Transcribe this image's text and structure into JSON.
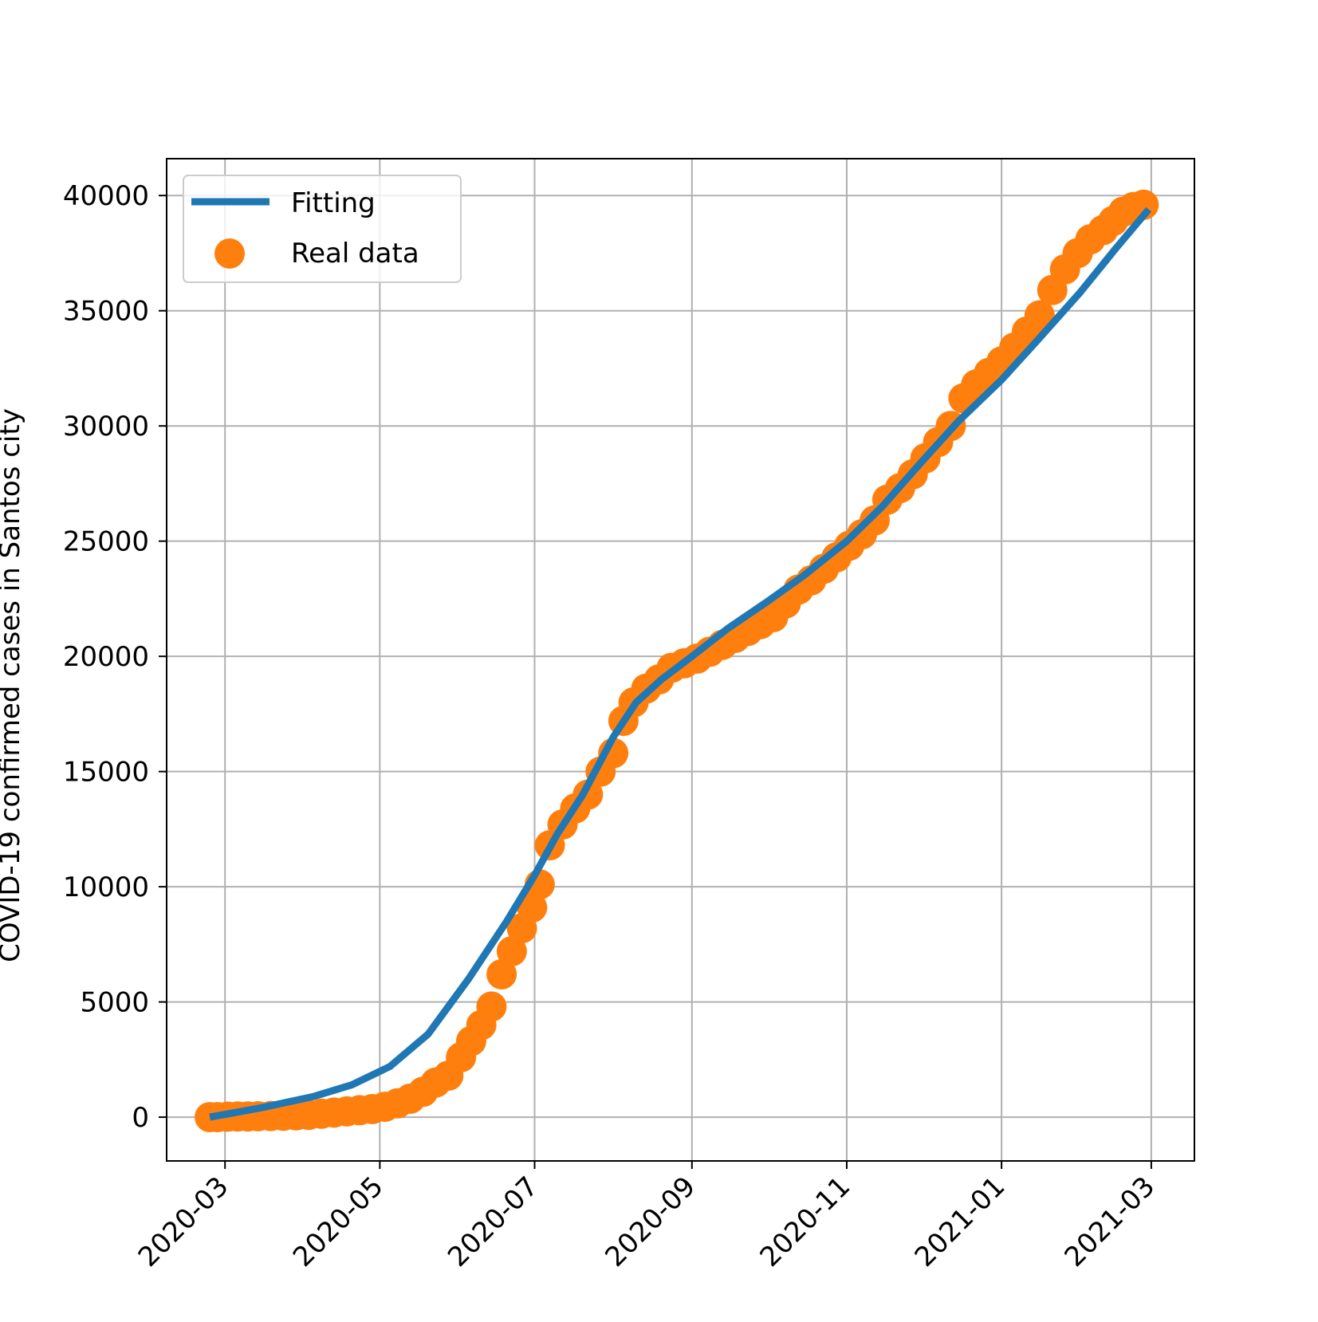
{
  "chart_data": {
    "type": "line",
    "ylabel": "COVID-19 confirmed cases in Santos city",
    "xlabel": "",
    "x_type": "date",
    "xlim": [
      "2020-02-07",
      "2021-03-18"
    ],
    "ylim": [
      -1900,
      41600
    ],
    "xticks": [
      "2020-03-01",
      "2020-05-01",
      "2020-07-01",
      "2020-09-01",
      "2020-11-01",
      "2021-01-01",
      "2021-03-01"
    ],
    "xtick_labels": [
      "2020-03",
      "2020-05",
      "2020-07",
      "2020-09",
      "2020-11",
      "2021-01",
      "2021-03"
    ],
    "yticks": [
      0,
      5000,
      10000,
      15000,
      20000,
      25000,
      30000,
      35000,
      40000
    ],
    "ytick_labels": [
      "0",
      "5000",
      "10000",
      "15000",
      "20000",
      "25000",
      "30000",
      "35000",
      "40000"
    ],
    "grid": true,
    "legend": {
      "placement": "top-left",
      "entries": [
        "Fitting",
        "Real data"
      ]
    },
    "colors": {
      "fitting": "#1f77b4",
      "real_data": "#ff7f0e",
      "grid": "#b0b0b0",
      "axes": "#000000"
    },
    "series": [
      {
        "name": "Fitting",
        "kind": "line",
        "x": [
          "2020-02-24",
          "2020-03-15",
          "2020-04-05",
          "2020-04-20",
          "2020-05-05",
          "2020-05-20",
          "2020-06-05",
          "2020-06-20",
          "2020-07-01",
          "2020-07-10",
          "2020-07-20",
          "2020-08-01",
          "2020-08-10",
          "2020-08-20",
          "2020-09-01",
          "2020-09-15",
          "2020-10-01",
          "2020-10-15",
          "2020-11-01",
          "2020-11-15",
          "2020-12-01",
          "2020-12-15",
          "2021-01-01",
          "2021-01-15",
          "2021-02-01",
          "2021-02-15",
          "2021-02-28"
        ],
        "y": [
          0,
          400,
          900,
          1400,
          2200,
          3600,
          6000,
          8500,
          10500,
          12300,
          14000,
          16500,
          18000,
          19000,
          20000,
          21200,
          22400,
          23500,
          25000,
          26500,
          28500,
          30200,
          32000,
          33700,
          35800,
          37700,
          39400
        ]
      },
      {
        "name": "Real data",
        "kind": "scatter",
        "x": [
          "2020-02-24",
          "2020-02-27",
          "2020-03-02",
          "2020-03-06",
          "2020-03-10",
          "2020-03-14",
          "2020-03-19",
          "2020-03-24",
          "2020-03-29",
          "2020-04-03",
          "2020-04-08",
          "2020-04-13",
          "2020-04-18",
          "2020-04-23",
          "2020-04-28",
          "2020-05-03",
          "2020-05-08",
          "2020-05-13",
          "2020-05-18",
          "2020-05-23",
          "2020-05-28",
          "2020-06-02",
          "2020-06-06",
          "2020-06-10",
          "2020-06-14",
          "2020-06-18",
          "2020-06-22",
          "2020-06-26",
          "2020-06-30",
          "2020-07-03",
          "2020-07-07",
          "2020-07-12",
          "2020-07-17",
          "2020-07-22",
          "2020-07-27",
          "2020-08-01",
          "2020-08-05",
          "2020-08-09",
          "2020-08-14",
          "2020-08-19",
          "2020-08-24",
          "2020-08-29",
          "2020-09-03",
          "2020-09-08",
          "2020-09-13",
          "2020-09-18",
          "2020-09-23",
          "2020-09-28",
          "2020-10-03",
          "2020-10-08",
          "2020-10-13",
          "2020-10-18",
          "2020-10-23",
          "2020-10-28",
          "2020-11-02",
          "2020-11-07",
          "2020-11-12",
          "2020-11-17",
          "2020-11-22",
          "2020-11-27",
          "2020-12-02",
          "2020-12-07",
          "2020-12-12",
          "2020-12-17",
          "2020-12-22",
          "2020-12-27",
          "2021-01-01",
          "2021-01-06",
          "2021-01-11",
          "2021-01-16",
          "2021-01-21",
          "2021-01-26",
          "2021-01-31",
          "2021-02-05",
          "2021-02-10",
          "2021-02-14",
          "2021-02-18",
          "2021-02-22",
          "2021-02-26"
        ],
        "y": [
          0,
          0,
          20,
          30,
          30,
          40,
          50,
          60,
          80,
          100,
          150,
          200,
          250,
          300,
          350,
          450,
          600,
          800,
          1100,
          1500,
          1800,
          2600,
          3300,
          4000,
          4800,
          6200,
          7200,
          8200,
          9100,
          10100,
          11800,
          12700,
          13400,
          14000,
          15000,
          15800,
          17200,
          18000,
          18600,
          19000,
          19500,
          19700,
          19900,
          20200,
          20500,
          20800,
          21100,
          21400,
          21700,
          22300,
          22900,
          23300,
          23800,
          24300,
          24800,
          25300,
          25900,
          26800,
          27300,
          27900,
          28600,
          29300,
          30000,
          31200,
          31800,
          32300,
          32800,
          33400,
          34100,
          34800,
          35900,
          36800,
          37500,
          38100,
          38500,
          38900,
          39300,
          39500,
          39600
        ]
      }
    ]
  }
}
